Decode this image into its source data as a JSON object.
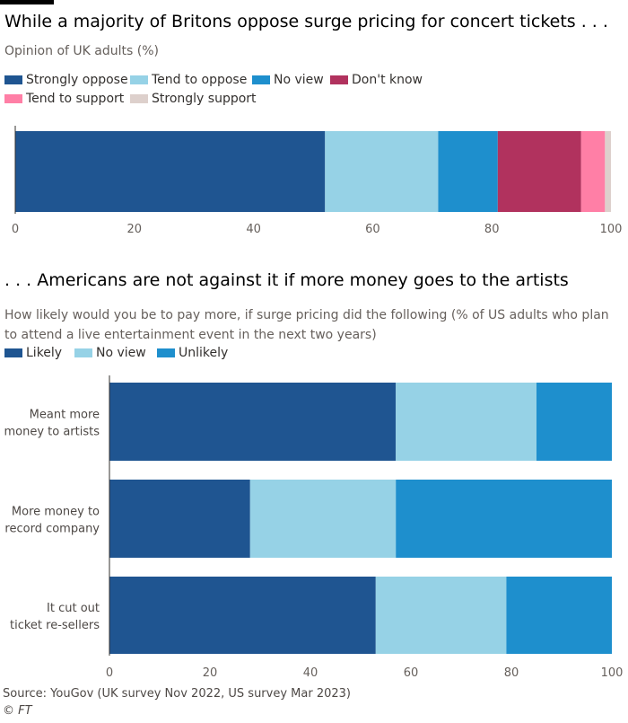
{
  "chart_data": [
    {
      "type": "bar",
      "orientation": "horizontal",
      "stacked": true,
      "title": "While a majority of Britons oppose surge pricing for concert tickets . . .",
      "subtitle": "Opinion of UK adults (%)",
      "categories": [
        ""
      ],
      "series": [
        {
          "name": "Strongly oppose",
          "values": [
            52
          ],
          "color": "#1f5591"
        },
        {
          "name": "Tend to oppose",
          "values": [
            19
          ],
          "color": "#96d2e6"
        },
        {
          "name": "No view",
          "values": [
            10
          ],
          "color": "#1e8fcd"
        },
        {
          "name": "Don't know",
          "values": [
            14
          ],
          "color": "#b1325e"
        },
        {
          "name": "Tend to support",
          "values": [
            4
          ],
          "color": "#ff7fa6"
        },
        {
          "name": "Strongly support",
          "values": [
            1
          ],
          "color": "#ddd0cc"
        }
      ],
      "xlim": [
        0,
        100
      ],
      "xticks": [
        "0",
        "20",
        "40",
        "60",
        "80",
        "100"
      ],
      "grid": false,
      "legend_position": "top-left"
    },
    {
      "type": "bar",
      "orientation": "horizontal",
      "stacked": true,
      "title": ". . . Americans are not against it if more money goes to the artists",
      "subtitle": "How likely would you be to pay more, if surge pricing did the following (% of US adults who plan to attend a live entertainment event in the next two years)",
      "categories": [
        [
          "Meant more",
          "money to artists"
        ],
        [
          "More money to",
          "record company"
        ],
        [
          "It cut out",
          "ticket re-sellers"
        ]
      ],
      "series": [
        {
          "name": "Likely",
          "values": [
            57,
            28,
            53
          ],
          "color": "#1f5591"
        },
        {
          "name": "No view",
          "values": [
            28,
            29,
            26
          ],
          "color": "#96d2e6"
        },
        {
          "name": "Unlikely",
          "values": [
            15,
            43,
            21
          ],
          "color": "#1e8fcd"
        }
      ],
      "xlim": [
        0,
        100
      ],
      "xticks": [
        "0",
        "20",
        "40",
        "60",
        "80",
        "100"
      ],
      "grid": false,
      "legend_position": "top-left"
    }
  ],
  "footer": {
    "source": "Source: YouGov (UK survey Nov 2022, US survey Mar 2023)",
    "credit": "© FT"
  }
}
